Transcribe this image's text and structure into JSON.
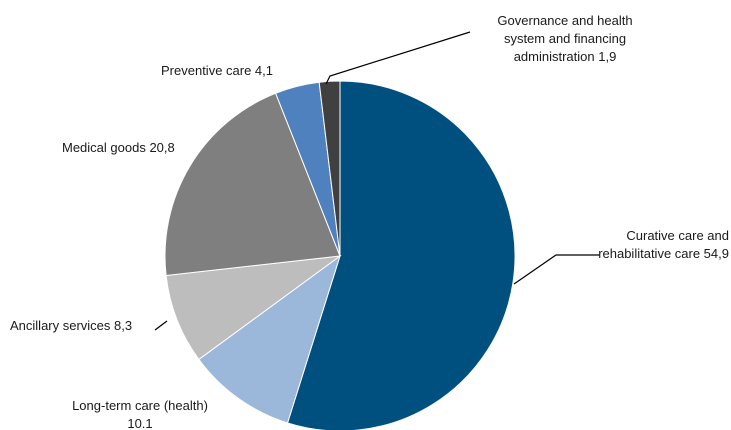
{
  "chart_data": {
    "type": "pie",
    "title": "",
    "slices": [
      {
        "label_lines": [
          "Curative care and",
          "rehabilitative care 54,9"
        ],
        "category": "Curative care and rehabilitative care",
        "value": 54.9,
        "color": "#00507f"
      },
      {
        "label_lines": [
          "Long-term care (health)",
          "10.1"
        ],
        "category": "Long-term care (health)",
        "value": 10.1,
        "color": "#9bb7da"
      },
      {
        "label_lines": [
          "Ancillary services 8,3"
        ],
        "category": "Ancillary services",
        "value": 8.3,
        "color": "#bdbdbd"
      },
      {
        "label_lines": [
          "Medical goods 20,8"
        ],
        "category": "Medical goods",
        "value": 20.8,
        "color": "#7f7f7f"
      },
      {
        "label_lines": [
          "Preventive care 4,1"
        ],
        "category": "Preventive care",
        "value": 4.1,
        "color": "#4e81bd"
      },
      {
        "label_lines": [
          "Governance and health",
          "system and financing",
          "administration 1,9"
        ],
        "category": "Governance and health system and financing administration",
        "value": 1.9,
        "color": "#404040"
      }
    ],
    "start": "12 o'clock",
    "direction": "clockwise",
    "legend": "none (slice labels with leader lines)"
  }
}
